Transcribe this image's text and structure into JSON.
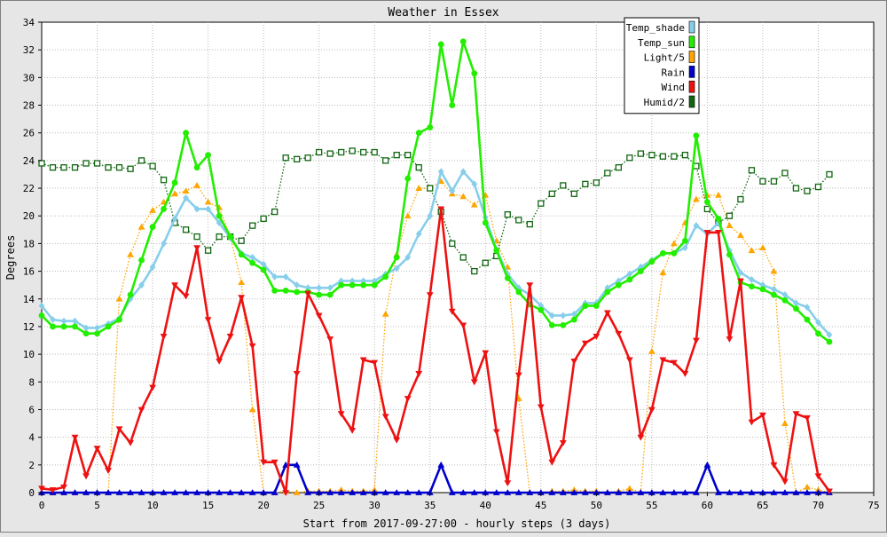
{
  "chart_data": {
    "type": "line",
    "title": "Weather in Essex",
    "xlabel": "Start from 2017-09-27:00 - hourly steps (3 days)",
    "ylabel": "Degrees",
    "xlim": [
      0,
      75
    ],
    "ylim": [
      0,
      34
    ],
    "xticks": [
      0,
      5,
      10,
      15,
      20,
      25,
      30,
      35,
      40,
      45,
      50,
      55,
      60,
      65,
      70,
      75
    ],
    "yticks": [
      0,
      2,
      4,
      6,
      8,
      10,
      12,
      14,
      16,
      18,
      20,
      22,
      24,
      26,
      28,
      30,
      32,
      34
    ],
    "grid": true,
    "legend_position": "top-right",
    "series": [
      {
        "name": "Temp_shade",
        "color": "#87ceeb",
        "style": "solid",
        "marker": "diamond",
        "values": [
          13.5,
          12.5,
          12.4,
          12.4,
          11.9,
          11.9,
          12.2,
          12.6,
          14,
          15,
          16.3,
          18,
          19.8,
          21.3,
          20.5,
          20.5,
          19.5,
          18.4,
          17.3,
          17,
          16.5,
          15.6,
          15.6,
          15,
          14.8,
          14.8,
          14.8,
          15.3,
          15.3,
          15.3,
          15.3,
          15.8,
          16.2,
          17,
          18.7,
          20,
          23.2,
          21.8,
          23.2,
          22.3,
          19.9,
          17.6,
          15.8,
          14.8,
          14.3,
          13.5,
          12.8,
          12.8,
          12.9,
          13.7,
          13.7,
          14.8,
          15.3,
          15.8,
          16.3,
          16.8,
          17.3,
          17.3,
          17.7,
          19.3,
          18.7,
          19.5,
          17.5,
          15.9,
          15.4,
          15,
          14.7,
          14.3,
          13.7,
          13.4,
          12.3,
          11.4
        ]
      },
      {
        "name": "Temp_sun",
        "color": "#22ee00",
        "style": "solid",
        "marker": "circle",
        "values": [
          12.8,
          12,
          12,
          12,
          11.5,
          11.5,
          12,
          12.5,
          14.3,
          16.8,
          19.2,
          20.5,
          22.4,
          26,
          23.5,
          24.4,
          20,
          18.5,
          17.2,
          16.6,
          16.1,
          14.6,
          14.6,
          14.5,
          14.5,
          14.3,
          14.3,
          15,
          15,
          15,
          15,
          15.6,
          17,
          22.7,
          26,
          26.4,
          32.4,
          28,
          32.6,
          30.3,
          19.5,
          17.5,
          15.5,
          14.5,
          13.6,
          13.2,
          12.1,
          12.1,
          12.5,
          13.5,
          13.5,
          14.5,
          15,
          15.4,
          16,
          16.7,
          17.3,
          17.3,
          18.2,
          25.8,
          21,
          19.8,
          17.2,
          15.2,
          14.9,
          14.7,
          14.3,
          13.9,
          13.3,
          12.5,
          11.5,
          10.9
        ]
      },
      {
        "name": "Light/5",
        "color": "#ffa500",
        "style": "dotted",
        "marker": "triangle-up",
        "values": [
          0,
          0,
          0,
          0,
          0,
          0,
          0,
          14,
          17.2,
          19.2,
          20.4,
          21,
          21.6,
          21.8,
          22.2,
          21,
          20.6,
          18.5,
          15.2,
          6,
          0,
          0,
          0.1,
          0,
          0.1,
          0.1,
          0.1,
          0.2,
          0.1,
          0.1,
          0.2,
          12.9,
          17.2,
          20,
          22,
          22,
          22.5,
          21.6,
          21.4,
          20.8,
          21.5,
          18.2,
          16.3,
          6.8,
          0,
          0,
          0.1,
          0.1,
          0.2,
          0.1,
          0.1,
          0,
          0.1,
          0.3,
          0,
          10.2,
          15.9,
          18,
          19.5,
          21.2,
          21.5,
          21.5,
          19.3,
          18.6,
          17.5,
          17.7,
          16,
          5,
          0,
          0.4,
          0.2,
          0
        ]
      },
      {
        "name": "Rain",
        "color": "#0000cc",
        "style": "solid",
        "marker": "triangle-up",
        "values": [
          0,
          0,
          0,
          0,
          0,
          0,
          0,
          0,
          0,
          0,
          0,
          0,
          0,
          0,
          0,
          0,
          0,
          0,
          0,
          0,
          0,
          0,
          2,
          2,
          0,
          0,
          0,
          0,
          0,
          0,
          0,
          0,
          0,
          0,
          0,
          0,
          2,
          0,
          0,
          0,
          0,
          0,
          0,
          0,
          0,
          0,
          0,
          0,
          0,
          0,
          0,
          0,
          0,
          0,
          0,
          0,
          0,
          0,
          0,
          0,
          2,
          0,
          0,
          0,
          0,
          0,
          0,
          0,
          0,
          0,
          0,
          0
        ]
      },
      {
        "name": "Wind",
        "color": "#ee1111",
        "style": "solid",
        "marker": "triangle-down",
        "values": [
          0.3,
          0.2,
          0.4,
          4,
          1.2,
          3.2,
          1.6,
          4.6,
          3.6,
          6,
          7.6,
          11.3,
          15,
          14.2,
          17.7,
          12.5,
          9.5,
          11.3,
          14.1,
          10.6,
          2.2,
          2.2,
          0,
          8.6,
          14.4,
          12.8,
          11.1,
          5.7,
          4.5,
          9.6,
          9.4,
          5.5,
          3.8,
          6.8,
          8.6,
          14.3,
          20.5,
          13.1,
          12.1,
          8,
          10.1,
          4.4,
          0.7,
          8.5,
          15,
          6.2,
          2.2,
          3.6,
          9.5,
          10.8,
          11.3,
          13,
          11.5,
          9.6,
          4,
          6,
          9.6,
          9.4,
          8.6,
          11,
          18.8,
          18.8,
          11.1,
          15.3,
          5.1,
          5.6,
          2,
          0.8,
          5.7,
          5.4,
          1.2,
          0.1
        ]
      },
      {
        "name": "Humid/2",
        "color": "#116611",
        "style": "dotted",
        "marker": "square",
        "values": [
          23.8,
          23.5,
          23.5,
          23.5,
          23.8,
          23.8,
          23.5,
          23.5,
          23.4,
          24,
          23.6,
          22.6,
          19.5,
          19,
          18.5,
          17.5,
          18.5,
          18.5,
          18.2,
          19.3,
          19.8,
          20.3,
          24.2,
          24.1,
          24.2,
          24.6,
          24.5,
          24.6,
          24.7,
          24.6,
          24.6,
          24,
          24.4,
          24.4,
          23.5,
          22,
          20.3,
          18,
          17,
          16,
          16.6,
          17.1,
          20.1,
          19.7,
          19.4,
          20.9,
          21.6,
          22.2,
          21.6,
          22.3,
          22.4,
          23.1,
          23.5,
          24.2,
          24.5,
          24.4,
          24.3,
          24.3,
          24.4,
          23.6,
          20.5,
          19.5,
          20,
          21.2,
          23.3,
          22.5,
          22.5,
          23.1,
          22,
          21.8,
          22.1,
          23
        ]
      }
    ]
  }
}
